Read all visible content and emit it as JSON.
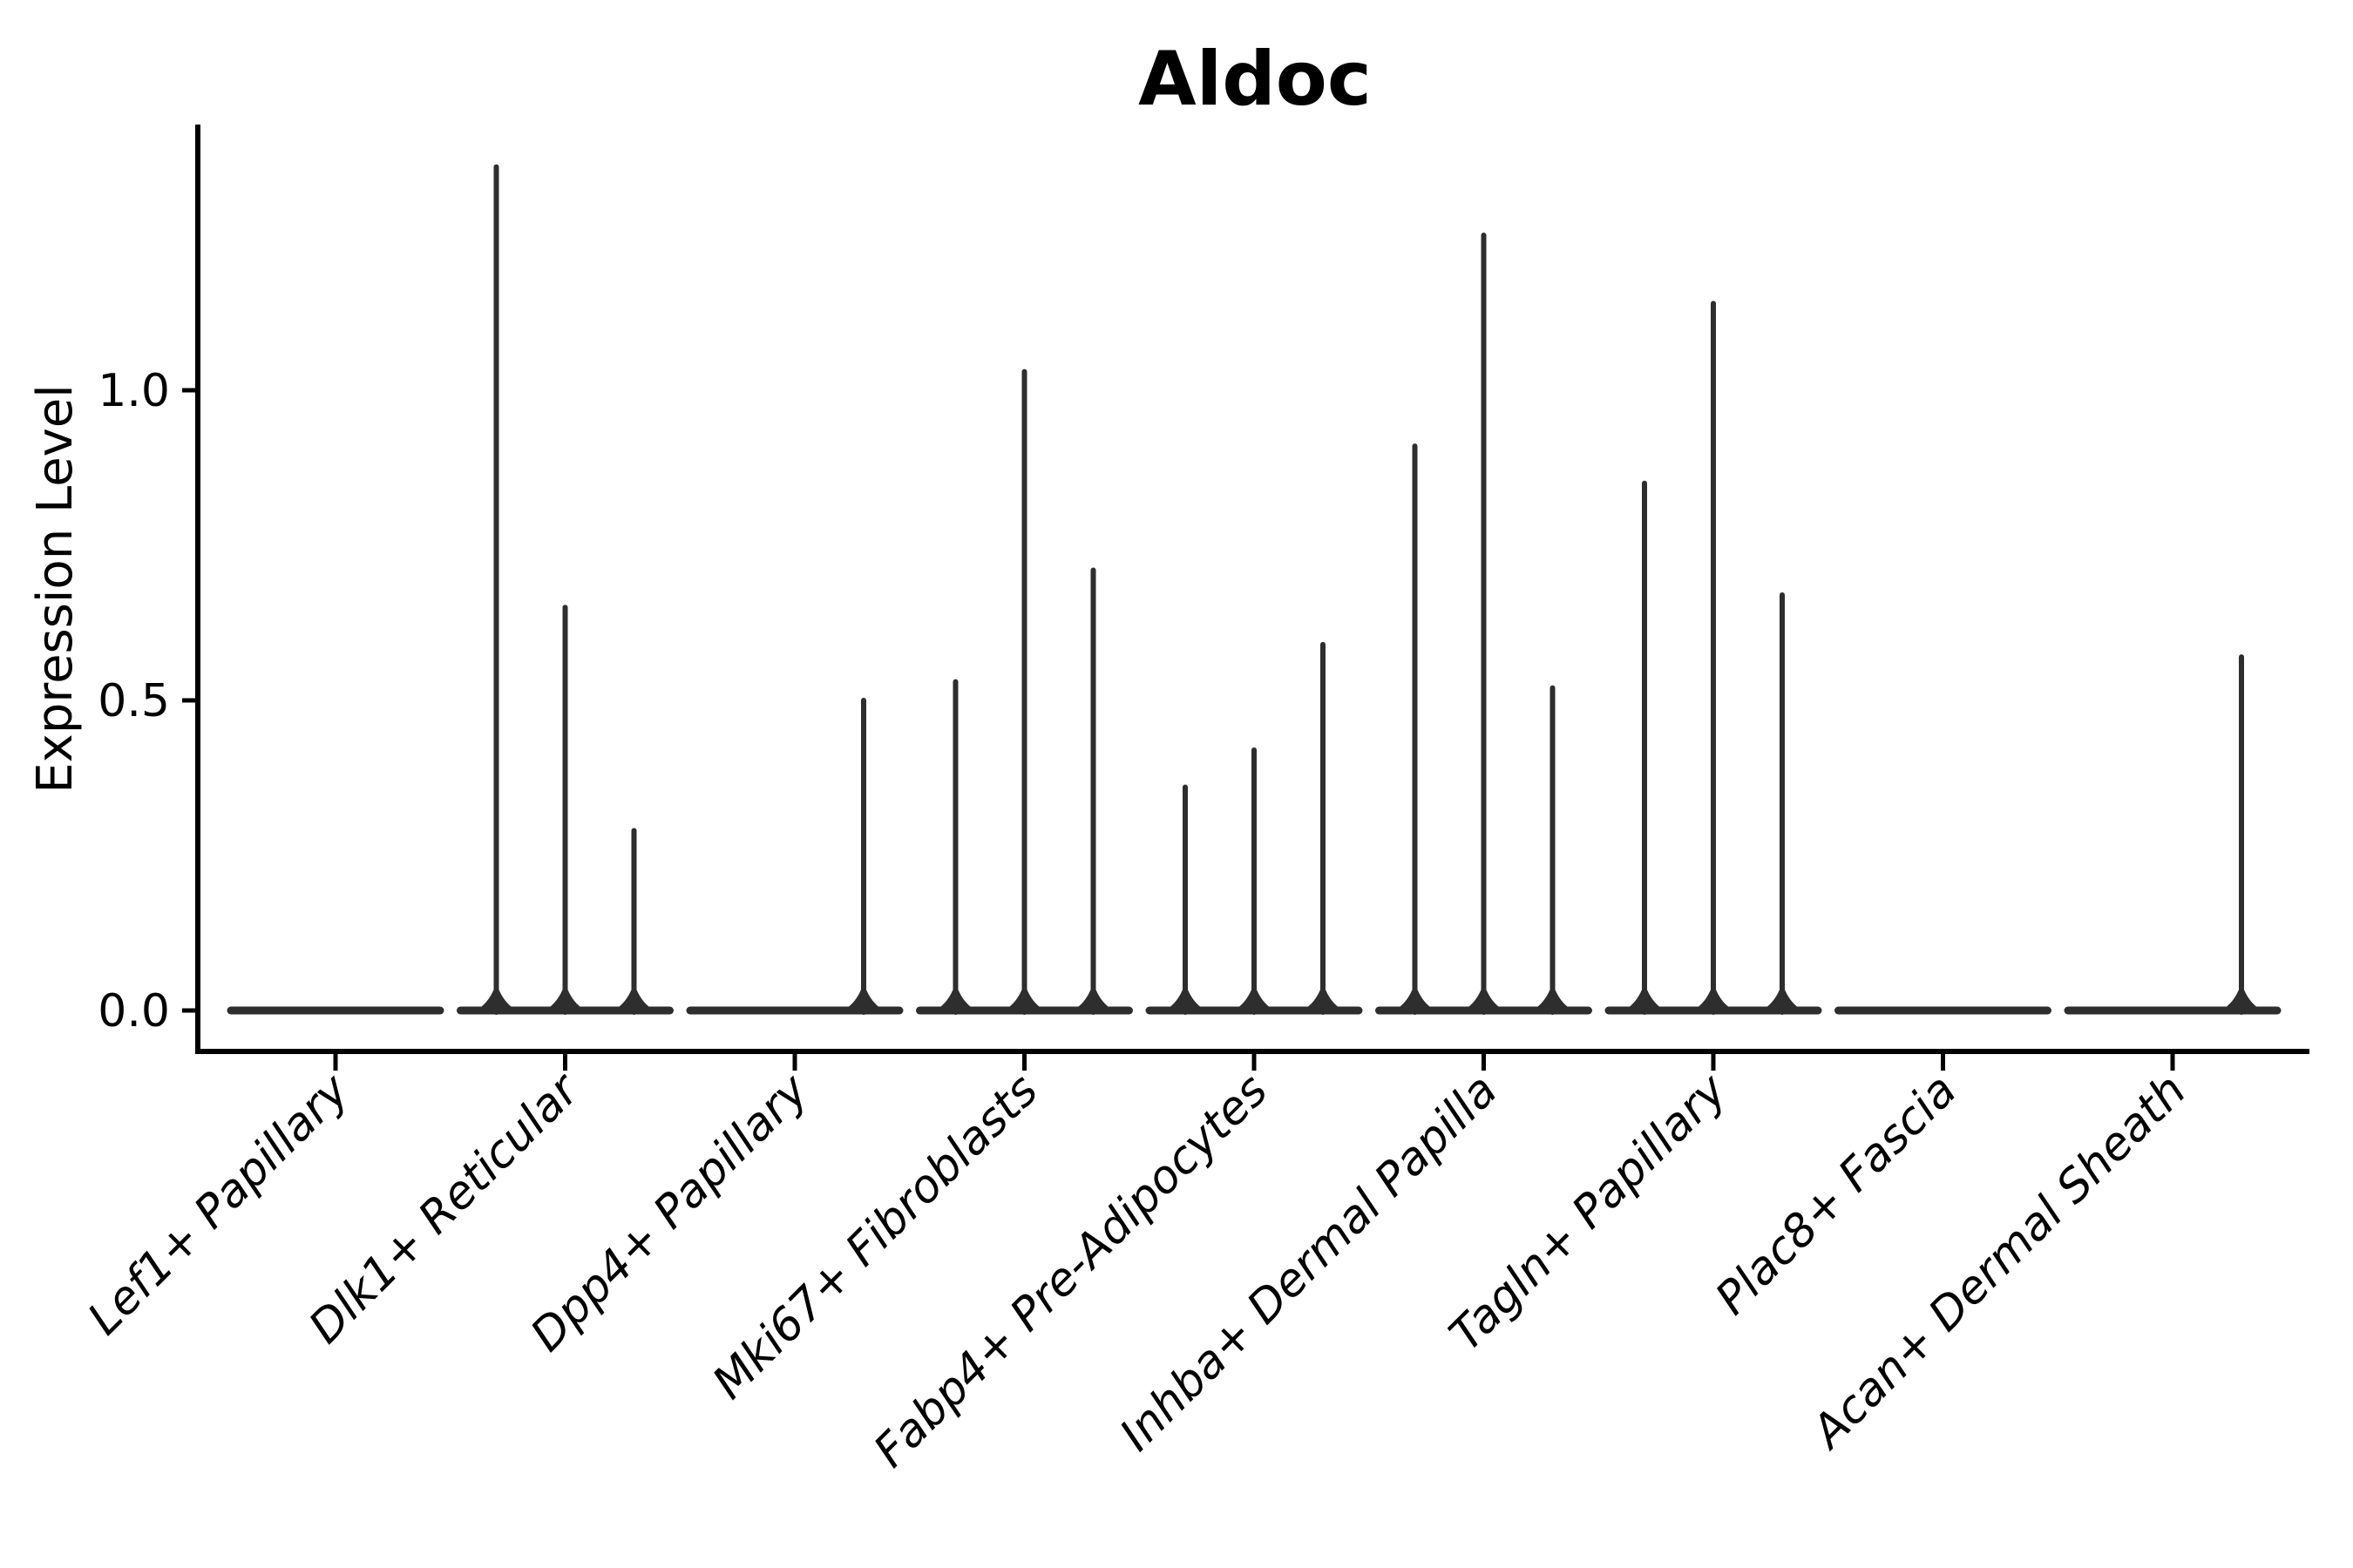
{
  "chart_data": {
    "type": "violin",
    "title": "Aldoc",
    "ylabel": "Expression Level",
    "xlabel": "",
    "categories": [
      "Lef1+ Papillary",
      "Dlk1+ Reticular",
      "Dpp4+ Papillary",
      "Mki67+ Fibroblasts",
      "Fabp4+ Pre-Adipocytes",
      "Inhba+ Dermal Papilla",
      "Tagln+ Papillary",
      "Plac8+ Fascia",
      "Acan+ Dermal Sheath"
    ],
    "violins_per_category": 3,
    "series": [
      {
        "name": "violin-left",
        "max_values": [
          0,
          1.36,
          0,
          0.53,
          0.36,
          0.91,
          0.85,
          0,
          0
        ]
      },
      {
        "name": "violin-middle",
        "max_values": [
          0,
          0.65,
          0,
          1.03,
          0.42,
          1.25,
          1.14,
          0,
          0
        ]
      },
      {
        "name": "violin-right",
        "max_values": [
          0,
          0.29,
          0.5,
          0.71,
          0.59,
          0.52,
          0.67,
          0,
          0.57
        ]
      }
    ],
    "ytick_labels": [
      "0.0",
      "0.5",
      "1.0"
    ],
    "ytick_values": [
      0.0,
      0.5,
      1.0
    ],
    "ylim": [
      -0.07,
      1.43
    ],
    "grid": false,
    "legend_position": "none",
    "colors": {
      "violin": "#2e2e2e",
      "axis": "#000000",
      "text": "#000000",
      "background": "#ffffff"
    },
    "style": {
      "x_label_rotation_deg": 45,
      "x_labels_italic": true
    }
  }
}
